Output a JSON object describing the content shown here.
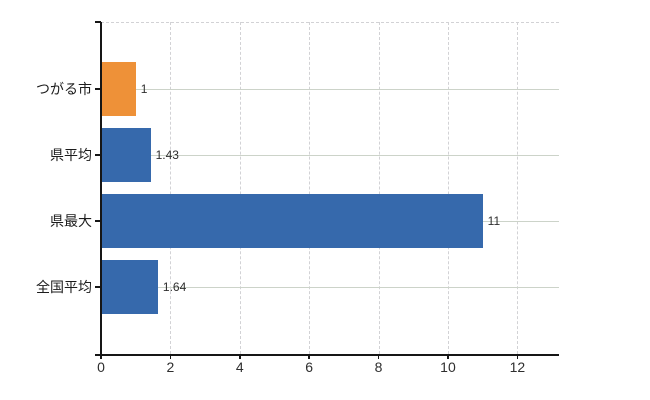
{
  "chart_data": {
    "type": "bar",
    "orientation": "horizontal",
    "title": "",
    "categories": [
      "つがる市",
      "県平均",
      "県最大",
      "全国平均"
    ],
    "values": [
      1,
      1.43,
      11,
      1.64
    ],
    "value_labels": [
      "1",
      "1.43",
      "11",
      "1.64"
    ],
    "bar_colors": [
      "#EE9138",
      "#3669AC",
      "#3669AC",
      "#3669AC"
    ],
    "x_ticks": [
      "0",
      "2",
      "4",
      "6",
      "8",
      "10",
      "12"
    ],
    "x_tick_values": [
      0,
      2,
      4,
      6,
      8,
      10,
      12
    ],
    "xlim": [
      0,
      13.2
    ],
    "xlabel": "",
    "ylabel": "",
    "legend": null,
    "grid": {
      "vertical": "dashed",
      "horizontal": "solid",
      "top_border": "dashed"
    }
  },
  "colors": {
    "background": "#ffffff",
    "axis": "#161616",
    "grid_vertical": "#d2d2d5",
    "grid_horizontal": "#ccd3c9",
    "bar_highlight": "#EE9138",
    "bar_default": "#3669AC",
    "text": "#2e2e2e"
  }
}
